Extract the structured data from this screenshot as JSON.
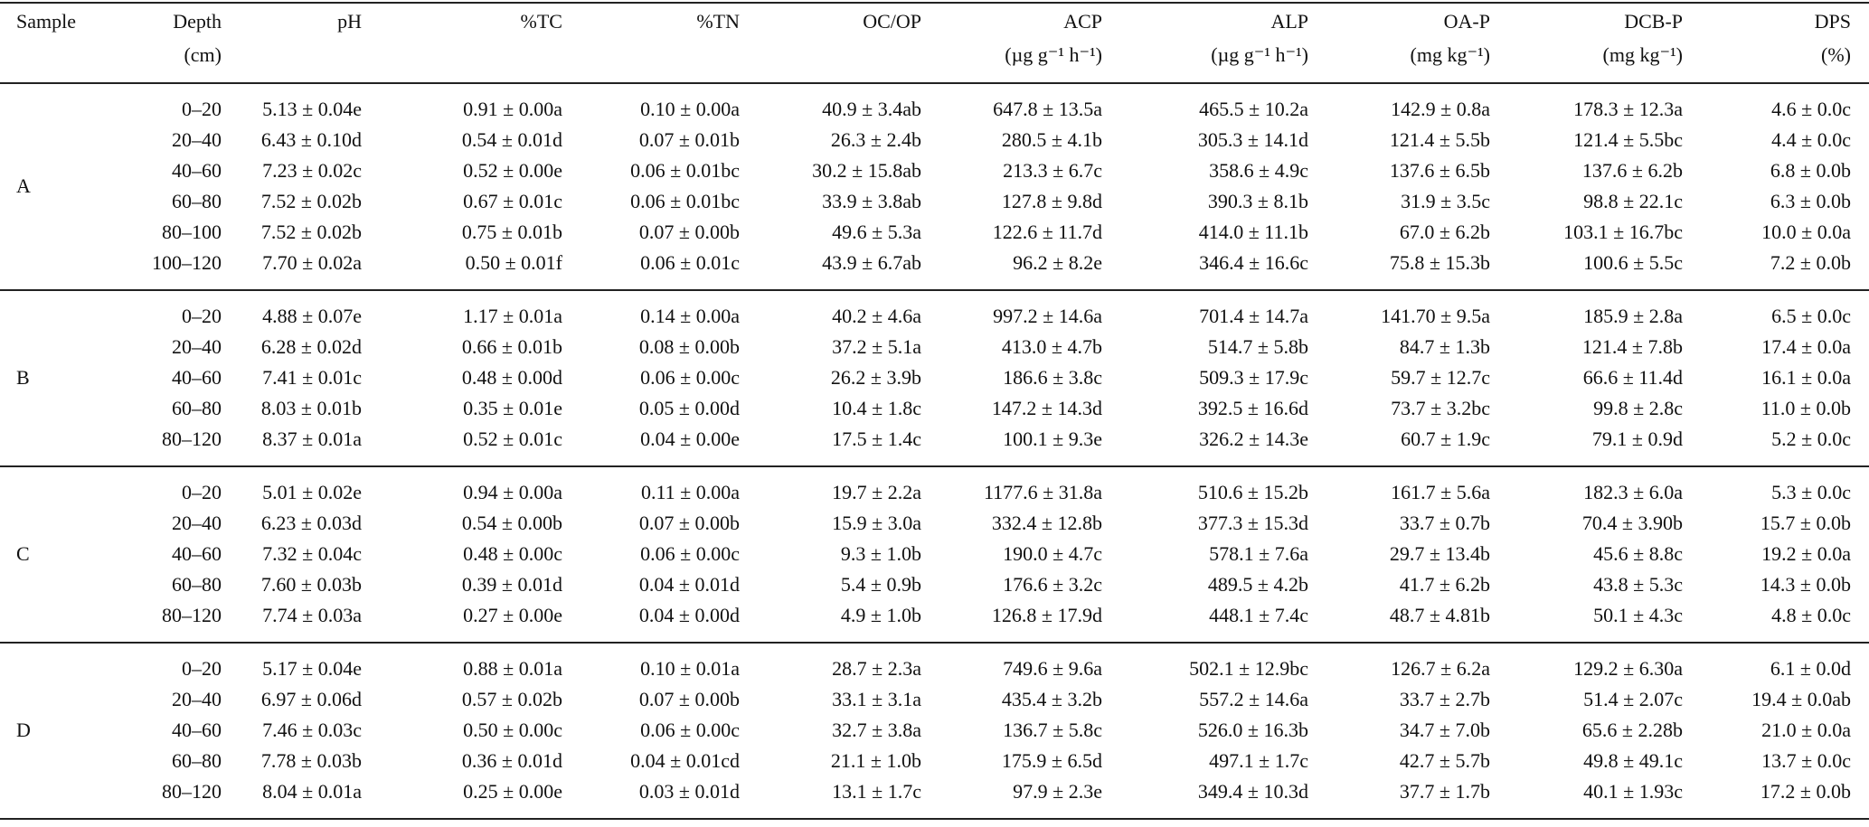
{
  "table": {
    "columns": [
      {
        "line1": "Sample"
      },
      {
        "line1": "Depth",
        "line2": "(cm)"
      },
      {
        "line1": "pH"
      },
      {
        "line1": "%TC"
      },
      {
        "line1": "%TN"
      },
      {
        "line1": "OC/OP"
      },
      {
        "line1": "ACP",
        "line2": "(µg g⁻¹ h⁻¹)"
      },
      {
        "line1": "ALP",
        "line2": "(µg g⁻¹ h⁻¹)"
      },
      {
        "line1": "OA-P",
        "line2": "(mg kg⁻¹)"
      },
      {
        "line1": "DCB-P",
        "line2": "(mg kg⁻¹)"
      },
      {
        "line1": "DPS",
        "line2": "(%)"
      }
    ],
    "groups": [
      {
        "sample": "A",
        "rows": [
          [
            "0–20",
            "5.13 ± 0.04e",
            "0.91 ± 0.00a",
            "0.10 ± 0.00a",
            "40.9 ± 3.4ab",
            "647.8 ± 13.5a",
            "465.5 ± 10.2a",
            "142.9 ± 0.8a",
            "178.3 ± 12.3a",
            "4.6 ± 0.0c"
          ],
          [
            "20–40",
            "6.43 ± 0.10d",
            "0.54 ± 0.01d",
            "0.07 ± 0.01b",
            "26.3 ± 2.4b",
            "280.5 ± 4.1b",
            "305.3 ± 14.1d",
            "121.4 ± 5.5b",
            "121.4 ± 5.5bc",
            "4.4 ± 0.0c"
          ],
          [
            "40–60",
            "7.23 ± 0.02c",
            "0.52 ± 0.00e",
            "0.06 ± 0.01bc",
            "30.2 ± 15.8ab",
            "213.3 ± 6.7c",
            "358.6 ± 4.9c",
            "137.6 ± 6.5b",
            "137.6 ± 6.2b",
            "6.8 ± 0.0b"
          ],
          [
            "60–80",
            "7.52 ± 0.02b",
            "0.67 ± 0.01c",
            "0.06 ± 0.01bc",
            "33.9 ± 3.8ab",
            "127.8 ± 9.8d",
            "390.3 ± 8.1b",
            "31.9 ± 3.5c",
            "98.8 ± 22.1c",
            "6.3 ± 0.0b"
          ],
          [
            "80–100",
            "7.52 ± 0.02b",
            "0.75 ± 0.01b",
            "0.07 ± 0.00b",
            "49.6 ± 5.3a",
            "122.6 ± 11.7d",
            "414.0 ± 11.1b",
            "67.0 ± 6.2b",
            "103.1 ± 16.7bc",
            "10.0 ± 0.0a"
          ],
          [
            "100–120",
            "7.70 ± 0.02a",
            "0.50 ± 0.01f",
            "0.06 ± 0.01c",
            "43.9 ± 6.7ab",
            "96.2 ± 8.2e",
            "346.4 ± 16.6c",
            "75.8 ± 15.3b",
            "100.6 ± 5.5c",
            "7.2 ± 0.0b"
          ]
        ]
      },
      {
        "sample": "B",
        "rows": [
          [
            "0–20",
            "4.88 ± 0.07e",
            "1.17 ± 0.01a",
            "0.14 ± 0.00a",
            "40.2 ± 4.6a",
            "997.2 ± 14.6a",
            "701.4 ± 14.7a",
            "141.70 ± 9.5a",
            "185.9 ± 2.8a",
            "6.5 ± 0.0c"
          ],
          [
            "20–40",
            "6.28 ± 0.02d",
            "0.66 ± 0.01b",
            "0.08 ± 0.00b",
            "37.2 ± 5.1a",
            "413.0 ± 4.7b",
            "514.7 ± 5.8b",
            "84.7 ± 1.3b",
            "121.4 ± 7.8b",
            "17.4 ± 0.0a"
          ],
          [
            "40–60",
            "7.41 ± 0.01c",
            "0.48 ± 0.00d",
            "0.06 ± 0.00c",
            "26.2 ± 3.9b",
            "186.6 ± 3.8c",
            "509.3 ± 17.9c",
            "59.7 ± 12.7c",
            "66.6 ± 11.4d",
            "16.1 ± 0.0a"
          ],
          [
            "60–80",
            "8.03 ± 0.01b",
            "0.35 ± 0.01e",
            "0.05 ± 0.00d",
            "10.4 ± 1.8c",
            "147.2 ± 14.3d",
            "392.5 ± 16.6d",
            "73.7 ± 3.2bc",
            "99.8 ± 2.8c",
            "11.0 ± 0.0b"
          ],
          [
            "80–120",
            "8.37 ± 0.01a",
            "0.52 ± 0.01c",
            "0.04 ± 0.00e",
            "17.5 ± 1.4c",
            "100.1 ± 9.3e",
            "326.2 ± 14.3e",
            "60.7 ± 1.9c",
            "79.1 ± 0.9d",
            "5.2 ± 0.0c"
          ]
        ]
      },
      {
        "sample": "C",
        "rows": [
          [
            "0–20",
            "5.01 ± 0.02e",
            "0.94 ± 0.00a",
            "0.11 ± 0.00a",
            "19.7 ± 2.2a",
            "1177.6 ± 31.8a",
            "510.6 ± 15.2b",
            "161.7 ± 5.6a",
            "182.3 ± 6.0a",
            "5.3 ± 0.0c"
          ],
          [
            "20–40",
            "6.23 ± 0.03d",
            "0.54 ± 0.00b",
            "0.07 ± 0.00b",
            "15.9 ± 3.0a",
            "332.4 ± 12.8b",
            "377.3 ± 15.3d",
            "33.7 ± 0.7b",
            "70.4 ± 3.90b",
            "15.7 ± 0.0b"
          ],
          [
            "40–60",
            "7.32 ± 0.04c",
            "0.48 ± 0.00c",
            "0.06 ± 0.00c",
            "9.3 ± 1.0b",
            "190.0 ± 4.7c",
            "578.1 ± 7.6a",
            "29.7 ± 13.4b",
            "45.6 ± 8.8c",
            "19.2 ± 0.0a"
          ],
          [
            "60–80",
            "7.60 ± 0.03b",
            "0.39 ± 0.01d",
            "0.04 ± 0.01d",
            "5.4 ± 0.9b",
            "176.6 ± 3.2c",
            "489.5 ± 4.2b",
            "41.7 ± 6.2b",
            "43.8 ± 5.3c",
            "14.3 ± 0.0b"
          ],
          [
            "80–120",
            "7.74 ± 0.03a",
            "0.27 ± 0.00e",
            "0.04 ± 0.00d",
            "4.9 ± 1.0b",
            "126.8 ± 17.9d",
            "448.1 ± 7.4c",
            "48.7 ± 4.81b",
            "50.1 ± 4.3c",
            "4.8 ± 0.0c"
          ]
        ]
      },
      {
        "sample": "D",
        "rows": [
          [
            "0–20",
            "5.17 ± 0.04e",
            "0.88 ± 0.01a",
            "0.10 ± 0.01a",
            "28.7 ± 2.3a",
            "749.6 ± 9.6a",
            "502.1 ± 12.9bc",
            "126.7 ± 6.2a",
            "129.2 ± 6.30a",
            "6.1 ± 0.0d"
          ],
          [
            "20–40",
            "6.97 ± 0.06d",
            "0.57 ± 0.02b",
            "0.07 ± 0.00b",
            "33.1 ± 3.1a",
            "435.4 ± 3.2b",
            "557.2 ± 14.6a",
            "33.7 ± 2.7b",
            "51.4 ± 2.07c",
            "19.4 ± 0.0ab"
          ],
          [
            "40–60",
            "7.46 ± 0.03c",
            "0.50 ± 0.00c",
            "0.06 ± 0.00c",
            "32.7 ± 3.8a",
            "136.7 ± 5.8c",
            "526.0 ± 16.3b",
            "34.7 ± 7.0b",
            "65.6 ± 2.28b",
            "21.0 ± 0.0a"
          ],
          [
            "60–80",
            "7.78 ± 0.03b",
            "0.36 ± 0.01d",
            "0.04 ± 0.01cd",
            "21.1 ± 1.0b",
            "175.9 ± 6.5d",
            "497.1 ± 1.7c",
            "42.7 ± 5.7b",
            "49.8 ± 49.1c",
            "13.7 ± 0.0c"
          ],
          [
            "80–120",
            "8.04 ± 0.01a",
            "0.25 ± 0.00e",
            "0.03 ± 0.01d",
            "13.1 ± 1.7c",
            "97.9 ± 2.3e",
            "349.4 ± 10.3d",
            "37.7 ± 1.7b",
            "40.1 ± 1.93c",
            "17.2 ± 0.0b"
          ]
        ]
      }
    ]
  }
}
